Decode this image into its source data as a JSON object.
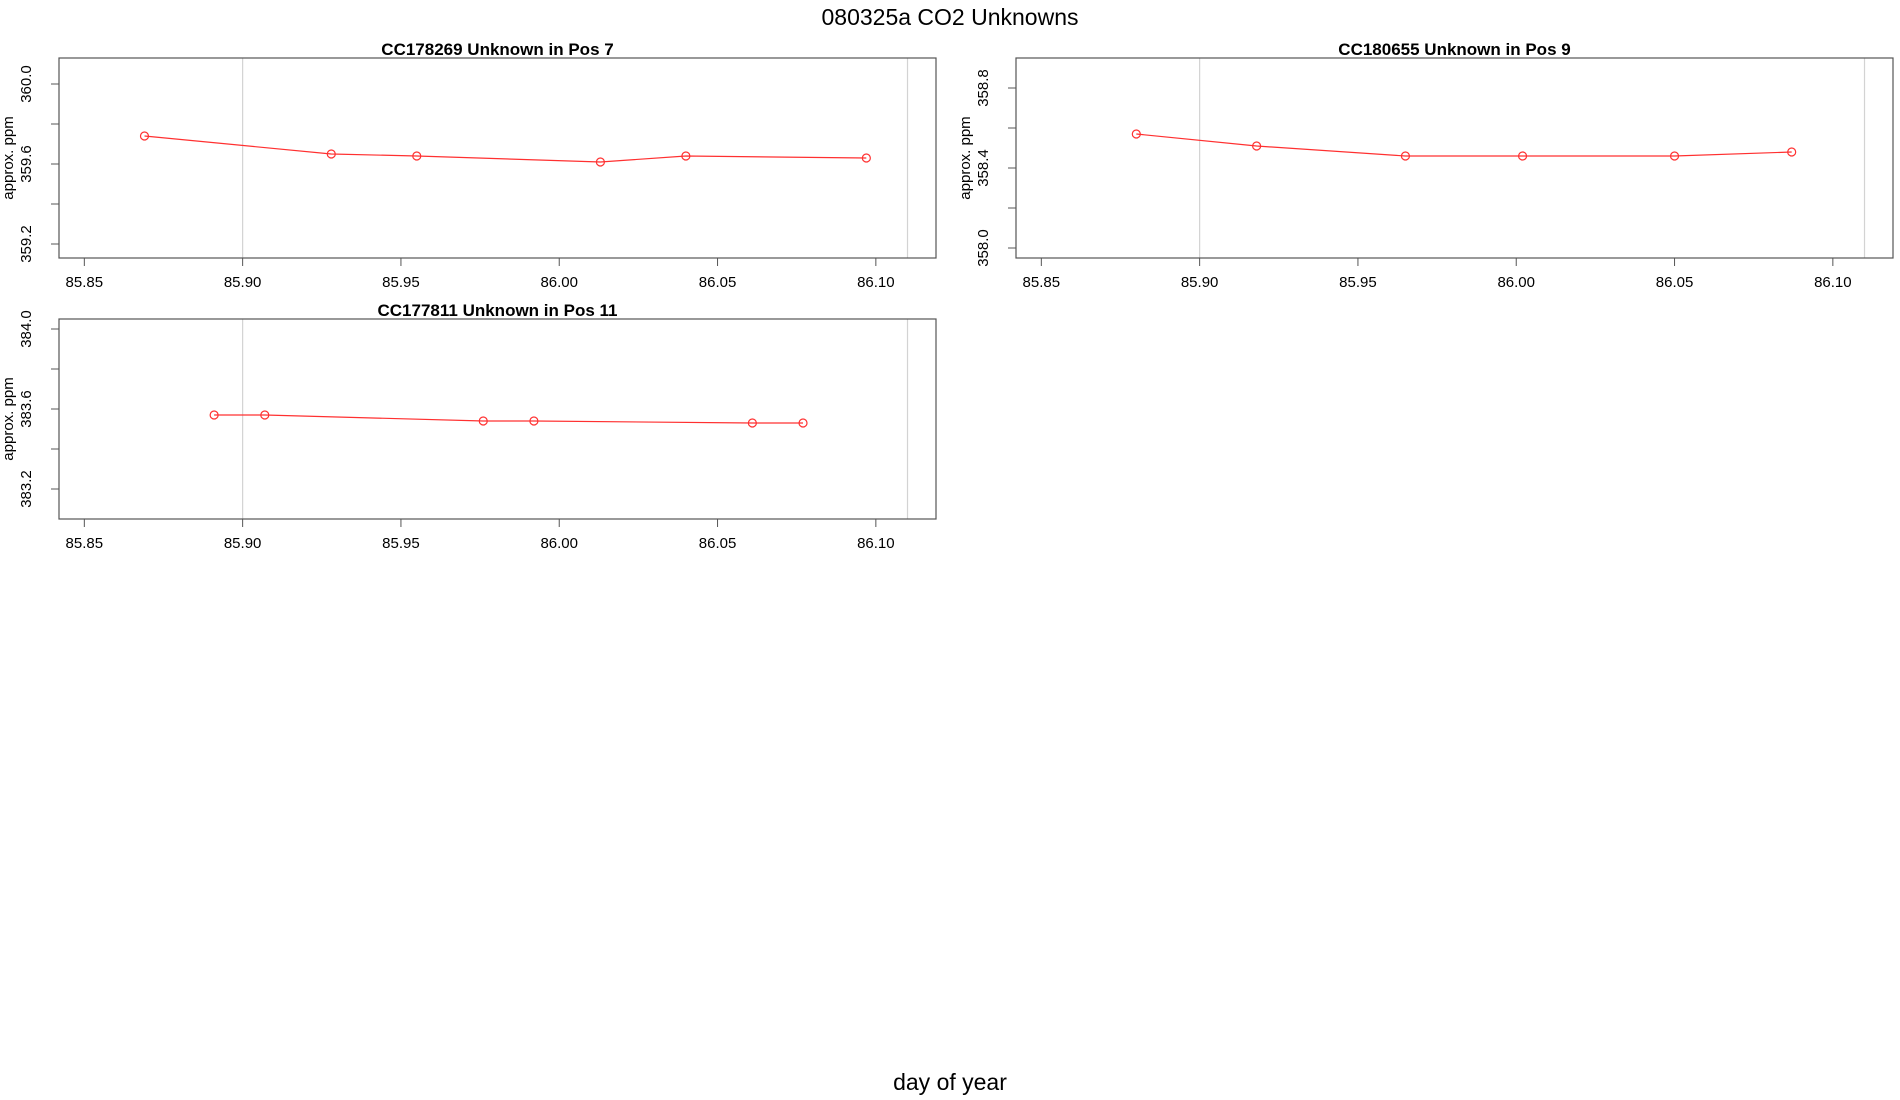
{
  "title": "080325a  CO2 Unknowns",
  "xlabel": "day of year",
  "colors": {
    "series": "#ff3030",
    "grid": "#d3d3d3",
    "axis": "#000000"
  },
  "chart_data": [
    {
      "type": "line",
      "title": "CC178269    Unknown in Pos 7",
      "ylabel": "approx. ppm",
      "xlim": [
        85.842,
        86.119
      ],
      "ylim": [
        359.13,
        360.13
      ],
      "xticks": [
        "85.85",
        "85.90",
        "85.95",
        "86.00",
        "86.05",
        "86.10"
      ],
      "yticks": [
        "359.2",
        "359.6",
        "360.0"
      ],
      "vlines": [
        85.9,
        86.11
      ],
      "series": [
        {
          "x": [
            85.869,
            85.928,
            85.955,
            86.013,
            86.04,
            86.097
          ],
          "y": [
            359.74,
            359.65,
            359.64,
            359.61,
            359.64,
            359.63
          ]
        }
      ]
    },
    {
      "type": "line",
      "title": "CC180655    Unknown in Pos 9",
      "ylabel": "approx. ppm",
      "xlim": [
        85.842,
        86.119
      ],
      "ylim": [
        357.95,
        358.95
      ],
      "xticks": [
        "85.85",
        "85.90",
        "85.95",
        "86.00",
        "86.05",
        "86.10"
      ],
      "yticks": [
        "358.0",
        "358.4",
        "358.8"
      ],
      "vlines": [
        85.9,
        86.11
      ],
      "series": [
        {
          "x": [
            85.88,
            85.918,
            85.965,
            86.002,
            86.05,
            86.087
          ],
          "y": [
            358.57,
            358.51,
            358.46,
            358.46,
            358.46,
            358.48
          ]
        }
      ]
    },
    {
      "type": "line",
      "title": "CC177811    Unknown in Pos 11",
      "ylabel": "approx. ppm",
      "xlim": [
        85.842,
        86.119
      ],
      "ylim": [
        383.05,
        384.05
      ],
      "xticks": [
        "85.85",
        "85.90",
        "85.95",
        "86.00",
        "86.05",
        "86.10"
      ],
      "yticks": [
        "383.2",
        "383.6",
        "384.0"
      ],
      "vlines": [
        85.9,
        86.11
      ],
      "series": [
        {
          "x": [
            85.891,
            85.907,
            85.976,
            85.992,
            86.061,
            86.077
          ],
          "y": [
            383.57,
            383.57,
            383.54,
            383.54,
            383.53,
            383.53
          ]
        }
      ]
    }
  ]
}
